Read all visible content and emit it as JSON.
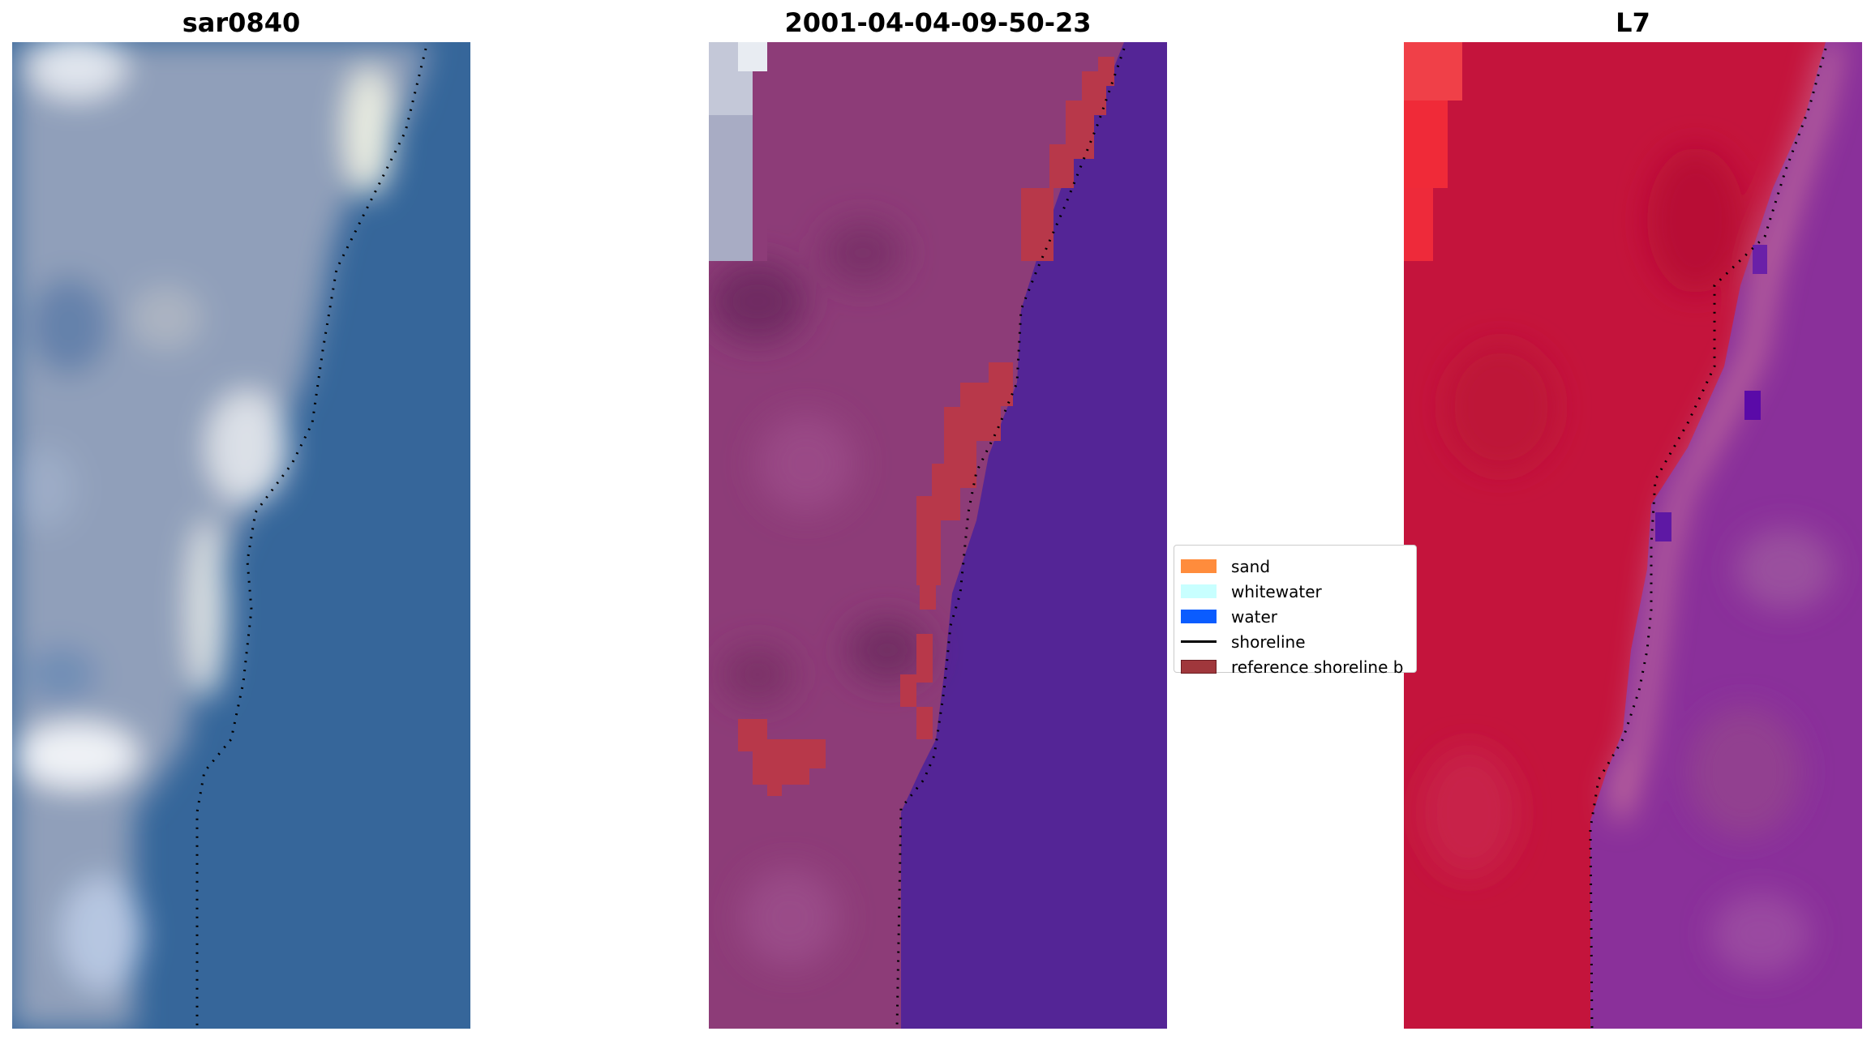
{
  "panels": [
    {
      "title": "sar0840"
    },
    {
      "title": "2001-04-04-09-50-23"
    },
    {
      "title": "L7"
    }
  ],
  "legend": {
    "items": [
      {
        "label": "sand",
        "color": "#ff8c3c",
        "kind": "patch"
      },
      {
        "label": "whitewater",
        "color": "#c8ffff",
        "kind": "patch"
      },
      {
        "label": "water",
        "color": "#0a5cff",
        "kind": "patch"
      },
      {
        "label": "shoreline",
        "color": "#000000",
        "kind": "line"
      },
      {
        "label": "reference shoreline b",
        "color": "#a0373c",
        "kind": "patch"
      }
    ]
  },
  "colors": {
    "rgb_water": "#2d5f95",
    "rgb_land": "#8e9fba",
    "false_color_land": "#8d3c78",
    "classified_water": "#542596",
    "reference_buffer": "#b8384a",
    "l7_land": "#c4143c",
    "l7_water": "#8a309a"
  }
}
